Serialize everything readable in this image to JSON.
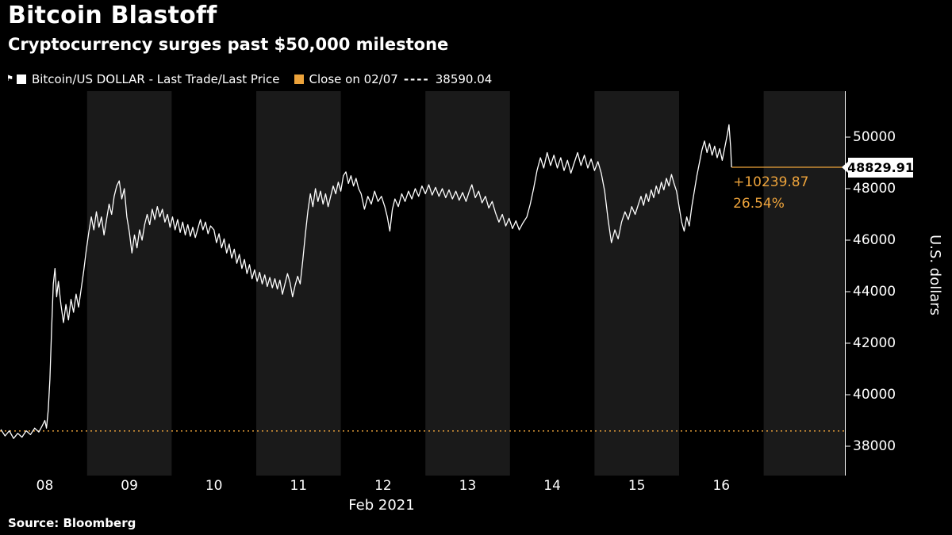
{
  "header": {
    "title": "Bitcoin Blastoff",
    "subtitle": "Cryptocurrency surges past $50,000 milestone"
  },
  "legend": {
    "series1": {
      "label": "Bitcoin/US DOLLAR - Last Trade/Last Price",
      "swatch_color": "#ffffff"
    },
    "series2": {
      "label": "Close on 02/07",
      "dash_sample": "----",
      "value": "38590.04",
      "swatch_color": "#EDA33B"
    }
  },
  "footer": {
    "source": "Source: Bloomberg"
  },
  "chart_data": {
    "type": "line",
    "title": "Bitcoin Blastoff",
    "subtitle": "Cryptocurrency surges past $50,000 milestone",
    "x_axis": {
      "label": "Feb 2021",
      "t_left": 7.47,
      "t_right": 17.47,
      "ticks": [
        {
          "t": 8,
          "label": "08"
        },
        {
          "t": 9,
          "label": "09"
        },
        {
          "t": 10,
          "label": "10"
        },
        {
          "t": 11,
          "label": "11"
        },
        {
          "t": 12,
          "label": "12"
        },
        {
          "t": 13,
          "label": "13"
        },
        {
          "t": 14,
          "label": "14"
        },
        {
          "t": 15,
          "label": "15"
        },
        {
          "t": 16,
          "label": "16"
        }
      ]
    },
    "y_axis": {
      "unit": "U.S. dollars",
      "ticks": [
        38000,
        40000,
        42000,
        44000,
        46000,
        48000,
        50000
      ],
      "price_top": 51785,
      "price_bottom": 36860
    },
    "bands": [
      [
        8.5,
        9.5
      ],
      [
        10.5,
        11.5
      ],
      [
        12.5,
        13.5
      ],
      [
        14.5,
        15.5
      ],
      [
        16.5,
        17.47
      ]
    ],
    "reference_line": {
      "label": "Close on 02/07",
      "value": 38590.04,
      "style": "dotted"
    },
    "last_price": 48829.91,
    "change_abs": "+10239.87",
    "change_pct": "26.54%",
    "colors": {
      "accent": "#EDA33B",
      "line": "#ffffff",
      "band": "#1a1a1a",
      "bg": "#000000"
    },
    "series": [
      {
        "name": "Bitcoin/US DOLLAR - Last Trade/Last Price",
        "color": "#ffffff",
        "points": [
          [
            7.48,
            38650
          ],
          [
            7.53,
            38400
          ],
          [
            7.58,
            38600
          ],
          [
            7.63,
            38300
          ],
          [
            7.68,
            38500
          ],
          [
            7.73,
            38350
          ],
          [
            7.78,
            38600
          ],
          [
            7.83,
            38450
          ],
          [
            7.88,
            38700
          ],
          [
            7.93,
            38550
          ],
          [
            7.97,
            38800
          ],
          [
            8.0,
            39000
          ],
          [
            8.02,
            38700
          ],
          [
            8.04,
            39400
          ],
          [
            8.06,
            40600
          ],
          [
            8.08,
            42500
          ],
          [
            8.1,
            44300
          ],
          [
            8.12,
            44900
          ],
          [
            8.14,
            43800
          ],
          [
            8.16,
            44400
          ],
          [
            8.19,
            43500
          ],
          [
            8.22,
            42800
          ],
          [
            8.25,
            43500
          ],
          [
            8.28,
            42900
          ],
          [
            8.31,
            43700
          ],
          [
            8.34,
            43200
          ],
          [
            8.37,
            43900
          ],
          [
            8.4,
            43400
          ],
          [
            8.43,
            44100
          ],
          [
            8.46,
            44800
          ],
          [
            8.49,
            45600
          ],
          [
            8.52,
            46300
          ],
          [
            8.55,
            46900
          ],
          [
            8.58,
            46400
          ],
          [
            8.61,
            47100
          ],
          [
            8.64,
            46500
          ],
          [
            8.67,
            46900
          ],
          [
            8.7,
            46200
          ],
          [
            8.73,
            46800
          ],
          [
            8.76,
            47400
          ],
          [
            8.79,
            47000
          ],
          [
            8.82,
            47700
          ],
          [
            8.85,
            48100
          ],
          [
            8.88,
            48300
          ],
          [
            8.91,
            47600
          ],
          [
            8.94,
            48000
          ],
          [
            8.97,
            46900
          ],
          [
            9.0,
            46300
          ],
          [
            9.03,
            45500
          ],
          [
            9.06,
            46200
          ],
          [
            9.09,
            45700
          ],
          [
            9.12,
            46400
          ],
          [
            9.15,
            46000
          ],
          [
            9.18,
            46600
          ],
          [
            9.21,
            47000
          ],
          [
            9.24,
            46600
          ],
          [
            9.27,
            47200
          ],
          [
            9.3,
            46800
          ],
          [
            9.33,
            47300
          ],
          [
            9.36,
            46900
          ],
          [
            9.39,
            47200
          ],
          [
            9.42,
            46700
          ],
          [
            9.45,
            47000
          ],
          [
            9.48,
            46500
          ],
          [
            9.51,
            46900
          ],
          [
            9.54,
            46400
          ],
          [
            9.57,
            46800
          ],
          [
            9.6,
            46300
          ],
          [
            9.63,
            46700
          ],
          [
            9.66,
            46200
          ],
          [
            9.69,
            46600
          ],
          [
            9.72,
            46150
          ],
          [
            9.75,
            46500
          ],
          [
            9.78,
            46100
          ],
          [
            9.81,
            46450
          ],
          [
            9.84,
            46800
          ],
          [
            9.87,
            46400
          ],
          [
            9.9,
            46700
          ],
          [
            9.93,
            46250
          ],
          [
            9.96,
            46550
          ],
          [
            10.0,
            46400
          ],
          [
            10.03,
            45900
          ],
          [
            10.06,
            46250
          ],
          [
            10.09,
            45700
          ],
          [
            10.12,
            46050
          ],
          [
            10.15,
            45500
          ],
          [
            10.18,
            45850
          ],
          [
            10.21,
            45300
          ],
          [
            10.24,
            45650
          ],
          [
            10.27,
            45100
          ],
          [
            10.3,
            45450
          ],
          [
            10.33,
            44900
          ],
          [
            10.36,
            45250
          ],
          [
            10.39,
            44700
          ],
          [
            10.42,
            45050
          ],
          [
            10.45,
            44500
          ],
          [
            10.48,
            44850
          ],
          [
            10.51,
            44400
          ],
          [
            10.54,
            44750
          ],
          [
            10.57,
            44300
          ],
          [
            10.6,
            44650
          ],
          [
            10.63,
            44200
          ],
          [
            10.66,
            44550
          ],
          [
            10.69,
            44150
          ],
          [
            10.72,
            44500
          ],
          [
            10.75,
            44100
          ],
          [
            10.78,
            44450
          ],
          [
            10.81,
            43900
          ],
          [
            10.84,
            44300
          ],
          [
            10.87,
            44700
          ],
          [
            10.9,
            44350
          ],
          [
            10.93,
            43800
          ],
          [
            10.96,
            44250
          ],
          [
            10.99,
            44600
          ],
          [
            11.02,
            44300
          ],
          [
            11.05,
            45200
          ],
          [
            11.08,
            46200
          ],
          [
            11.11,
            47100
          ],
          [
            11.14,
            47800
          ],
          [
            11.17,
            47300
          ],
          [
            11.2,
            48000
          ],
          [
            11.23,
            47500
          ],
          [
            11.26,
            47900
          ],
          [
            11.29,
            47400
          ],
          [
            11.32,
            47800
          ],
          [
            11.35,
            47300
          ],
          [
            11.38,
            47700
          ],
          [
            11.41,
            48100
          ],
          [
            11.44,
            47800
          ],
          [
            11.47,
            48250
          ],
          [
            11.5,
            47900
          ],
          [
            11.53,
            48500
          ],
          [
            11.56,
            48650
          ],
          [
            11.59,
            48200
          ],
          [
            11.62,
            48500
          ],
          [
            11.65,
            48100
          ],
          [
            11.68,
            48400
          ],
          [
            11.71,
            48000
          ],
          [
            11.74,
            47800
          ],
          [
            11.78,
            47200
          ],
          [
            11.82,
            47700
          ],
          [
            11.86,
            47400
          ],
          [
            11.9,
            47900
          ],
          [
            11.94,
            47500
          ],
          [
            11.98,
            47700
          ],
          [
            12.02,
            47300
          ],
          [
            12.05,
            46900
          ],
          [
            12.08,
            46350
          ],
          [
            12.11,
            47200
          ],
          [
            12.14,
            47600
          ],
          [
            12.18,
            47300
          ],
          [
            12.22,
            47800
          ],
          [
            12.26,
            47500
          ],
          [
            12.3,
            47900
          ],
          [
            12.34,
            47600
          ],
          [
            12.38,
            48000
          ],
          [
            12.42,
            47700
          ],
          [
            12.46,
            48100
          ],
          [
            12.5,
            47800
          ],
          [
            12.54,
            48150
          ],
          [
            12.58,
            47750
          ],
          [
            12.62,
            48050
          ],
          [
            12.66,
            47700
          ],
          [
            12.7,
            48000
          ],
          [
            12.74,
            47650
          ],
          [
            12.78,
            47950
          ],
          [
            12.82,
            47600
          ],
          [
            12.86,
            47900
          ],
          [
            12.9,
            47550
          ],
          [
            12.94,
            47850
          ],
          [
            12.98,
            47500
          ],
          [
            13.02,
            47900
          ],
          [
            13.05,
            48150
          ],
          [
            13.09,
            47650
          ],
          [
            13.13,
            47900
          ],
          [
            13.17,
            47450
          ],
          [
            13.21,
            47700
          ],
          [
            13.25,
            47250
          ],
          [
            13.29,
            47500
          ],
          [
            13.33,
            47050
          ],
          [
            13.37,
            46700
          ],
          [
            13.41,
            47000
          ],
          [
            13.45,
            46550
          ],
          [
            13.49,
            46850
          ],
          [
            13.53,
            46450
          ],
          [
            13.57,
            46750
          ],
          [
            13.61,
            46400
          ],
          [
            13.65,
            46650
          ],
          [
            13.7,
            46900
          ],
          [
            13.74,
            47400
          ],
          [
            13.78,
            48000
          ],
          [
            13.82,
            48700
          ],
          [
            13.86,
            49200
          ],
          [
            13.9,
            48800
          ],
          [
            13.94,
            49400
          ],
          [
            13.98,
            48900
          ],
          [
            14.02,
            49300
          ],
          [
            14.06,
            48800
          ],
          [
            14.1,
            49200
          ],
          [
            14.14,
            48700
          ],
          [
            14.18,
            49100
          ],
          [
            14.22,
            48600
          ],
          [
            14.26,
            49000
          ],
          [
            14.3,
            49400
          ],
          [
            14.34,
            48900
          ],
          [
            14.38,
            49300
          ],
          [
            14.42,
            48800
          ],
          [
            14.46,
            49150
          ],
          [
            14.5,
            48700
          ],
          [
            14.54,
            49050
          ],
          [
            14.58,
            48600
          ],
          [
            14.62,
            47900
          ],
          [
            14.66,
            46800
          ],
          [
            14.7,
            45900
          ],
          [
            14.74,
            46400
          ],
          [
            14.78,
            46050
          ],
          [
            14.82,
            46700
          ],
          [
            14.86,
            47100
          ],
          [
            14.9,
            46800
          ],
          [
            14.94,
            47300
          ],
          [
            14.98,
            47000
          ],
          [
            15.02,
            47400
          ],
          [
            15.05,
            47700
          ],
          [
            15.08,
            47350
          ],
          [
            15.11,
            47800
          ],
          [
            15.14,
            47500
          ],
          [
            15.17,
            47950
          ],
          [
            15.2,
            47650
          ],
          [
            15.23,
            48100
          ],
          [
            15.26,
            47800
          ],
          [
            15.29,
            48250
          ],
          [
            15.32,
            47950
          ],
          [
            15.35,
            48400
          ],
          [
            15.38,
            48100
          ],
          [
            15.41,
            48550
          ],
          [
            15.44,
            48200
          ],
          [
            15.47,
            47900
          ],
          [
            15.5,
            47300
          ],
          [
            15.53,
            46700
          ],
          [
            15.56,
            46350
          ],
          [
            15.59,
            46900
          ],
          [
            15.62,
            46550
          ],
          [
            15.65,
            47300
          ],
          [
            15.68,
            47900
          ],
          [
            15.71,
            48500
          ],
          [
            15.74,
            49000
          ],
          [
            15.77,
            49500
          ],
          [
            15.8,
            49850
          ],
          [
            15.83,
            49400
          ],
          [
            15.86,
            49750
          ],
          [
            15.89,
            49300
          ],
          [
            15.92,
            49650
          ],
          [
            15.95,
            49200
          ],
          [
            15.98,
            49550
          ],
          [
            16.01,
            49100
          ],
          [
            16.04,
            49600
          ],
          [
            16.07,
            50100
          ],
          [
            16.09,
            50480
          ],
          [
            16.11,
            49600
          ],
          [
            16.12,
            48829.91
          ]
        ]
      }
    ]
  }
}
